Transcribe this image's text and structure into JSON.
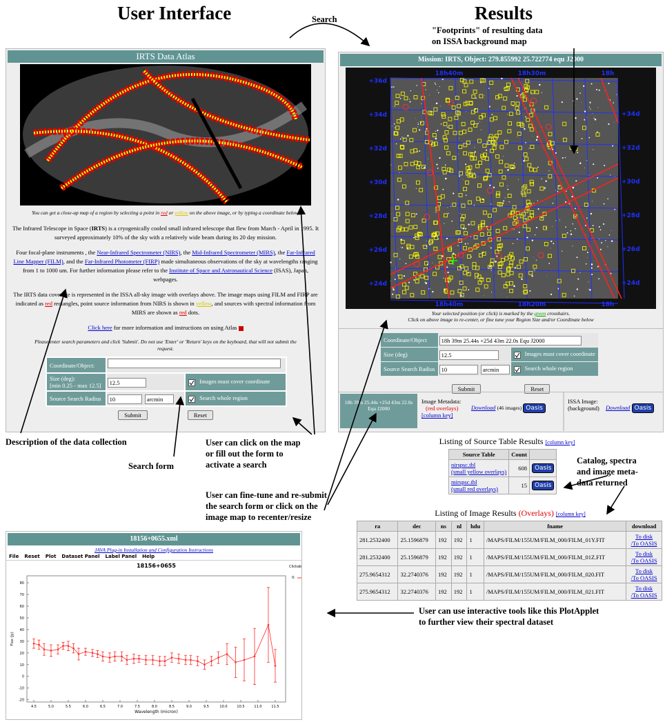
{
  "headings": {
    "left": "User Interface",
    "right": "Results",
    "search": "Search"
  },
  "annotations": {
    "footprints": [
      "\"Footprints\" of resulting data",
      "on ISSA background map"
    ],
    "description": "Description of the data collection",
    "search_form": "Search form",
    "click_map": [
      "User can click on the map",
      "or fill out the form to",
      "activate a search"
    ],
    "fine_tune": [
      "User can fine-tune and re-submit",
      "the search form or click on the",
      "image map to recenter/resize"
    ],
    "returned": [
      "Catalog, spectra",
      "and image meta-",
      "data returned"
    ],
    "plot_applet": [
      "User can use interactive tools like this PlotApplet",
      "to further view their spectral dataset"
    ]
  },
  "atlas": {
    "title": "IRTS Data Atlas",
    "caption": [
      {
        "text": "You can get a close-up map of a region by selecting a point in "
      },
      {
        "text": "red",
        "style": "red"
      },
      {
        "text": " or "
      },
      {
        "text": "yellow",
        "style": "yellow"
      },
      {
        "text": " on the above image, or by typing a coordinate below."
      }
    ],
    "paragraphs": [
      [
        {
          "text": "The Infrared Telescope in Space ("
        },
        {
          "text": "IRTS",
          "style": "bold"
        },
        {
          "text": ") is a cryogenically cooled small infrared telescope that flew from March - April in 1995. It surveyed approximately 10% of the sky with a relatively wide beam during its 20 day mission."
        }
      ],
      [
        {
          "text": "Four focal-plane instruments , the "
        },
        {
          "text": "Near-Infrared Spectrometer (NIRS)",
          "style": "link"
        },
        {
          "text": ", the "
        },
        {
          "text": "Mid-Infrared Spectrometer (MIRS)",
          "style": "link"
        },
        {
          "text": ", the "
        },
        {
          "text": "Far-Infrared Line Mapper (FILM)",
          "style": "link"
        },
        {
          "text": ", and the "
        },
        {
          "text": "Far-Infrared Photometer (FIRP)",
          "style": "link"
        },
        {
          "text": " made simultaneous observations of the sky at wavelengths ranging from 1 to 1000 um. For further information please refer to the "
        },
        {
          "text": "Institute of Space and Astronautical Science",
          "style": "link"
        },
        {
          "text": " (ISAS), Japan, webpages."
        }
      ],
      [
        {
          "text": "The IRTS data coverage is represented in the ISSA all-sky image with overlays above. The image maps using FILM and FIRP are indicated as "
        },
        {
          "text": "red",
          "style": "red"
        },
        {
          "text": " rectangles, point source information from NIRS is shown in "
        },
        {
          "text": "yellow",
          "style": "yellow"
        },
        {
          "text": ", and sources with spectral information from MIRS are shown as "
        },
        {
          "text": "red",
          "style": "red"
        },
        {
          "text": " dots."
        }
      ]
    ],
    "help": [
      {
        "text": "Click here",
        "style": "link"
      },
      {
        "text": " for more information and instructions on using Atlas"
      }
    ],
    "instructions": "Please enter search parameters and click 'Submit'. Do not use 'Enter' or 'Return' keys on the keyboard, that will not submit the request.",
    "form": {
      "coordinate": "Coordinate/Object:",
      "size": "Size (deg):",
      "size_range": "[min 0.25 - max 12.5]",
      "size_value": "12.5",
      "radius": "Source Search Radius",
      "radius_value": "10",
      "unit": "arcmin",
      "cover": "Images must cover coordinate",
      "whole": "Search whole region",
      "submit": "Submit",
      "reset": "Reset"
    }
  },
  "results": {
    "title": "Mission: IRTS, Object: 279.855992 25.722774 equ J2000",
    "map_labels": {
      "top": [
        "18h40m",
        "18h30m",
        "18h"
      ],
      "bottom": [
        "18h40m",
        "18h20m",
        "18h"
      ],
      "left": [
        "+36d",
        "+34d",
        "+32d",
        "+30d",
        "+28d",
        "+26d",
        "+24d"
      ],
      "right": [
        "+34d",
        "+32d",
        "+30d",
        "+28d",
        "+26d",
        "+24d"
      ]
    },
    "caption": [
      {
        "text": "Your selected position (or click) is marked by the "
      },
      {
        "text": "green",
        "style": "green"
      },
      {
        "text": " crosshairs."
      }
    ],
    "caption2": "Click on above image to re-center, or fine tune your Region Size and/or Coordinate below",
    "form": {
      "coordinate": "Coordinate/Object",
      "coordinate_value": "18h 39m 25.44s +25d 43m 22.0s Equ J2000",
      "size": "Size (deg)",
      "size_value": "12.5",
      "radius": "Source Search Radius",
      "radius_value": "10",
      "unit": "arcmin",
      "cover": "Images must cover coordinate",
      "whole": "Search whole region",
      "submit": "Submit",
      "reset": "Reset"
    },
    "position": "18h 39m 25.44s +25d 43m 22.0s Equ J2000",
    "image_metadata": {
      "label": "Image Metadata:",
      "overlay": "(red overlays)",
      "column_key": "[column key]",
      "download": "Download",
      "count": "(46 images)"
    },
    "issa": {
      "label": "ISSA Image:",
      "sub": "(background)",
      "download": "Download"
    },
    "oasis": "Oasis"
  },
  "source_listing": {
    "title": "Listing of Source Table Results",
    "column_key": "[column key]",
    "headers": [
      "Source Table",
      "Count"
    ],
    "rows": [
      {
        "file": "nirspsc.tbl",
        "note": "(small yellow overlays)",
        "count": "608"
      },
      {
        "file": "mirspsc.tbl",
        "note": "(small red overlays)",
        "count": "15"
      }
    ]
  },
  "image_listing": {
    "title": "Listing of Image Results",
    "overlays": "(Overlays)",
    "column_key": "[column key]",
    "headers": [
      "ra",
      "dec",
      "ns",
      "nl",
      "hdu",
      "fname",
      "download"
    ],
    "rows": [
      [
        "281.2532400",
        "25.1596879",
        "192",
        "192",
        "1",
        "/MAPS/FILM/155UM/FILM_000/FILM_01Y.FIT",
        "To disk",
        "/To OASIS"
      ],
      [
        "281.2532400",
        "25.1596879",
        "192",
        "192",
        "1",
        "/MAPS/FILM/155UM/FILM_000/FILM_01Z.FIT",
        "To disk",
        "/To OASIS"
      ],
      [
        "275.9654312",
        "32.2740376",
        "192",
        "192",
        "1",
        "/MAPS/FILM/155UM/FILM_000/FILM_020.FIT",
        "To disk",
        "/To OASIS"
      ],
      [
        "275.9654312",
        "32.2740376",
        "192",
        "192",
        "1",
        "/MAPS/FILM/155UM/FILM_000/FILM_021.FIT",
        "To disk",
        "/To OASIS"
      ]
    ]
  },
  "plot_window": {
    "title": "18156+0655.xml",
    "plugin": "JAVA Plug-in Installation and Configuration Instructions",
    "menu": [
      "File",
      "Reset",
      "Plot",
      "Dataset Panel",
      "Label Panel",
      "Help"
    ],
    "legend_title": "Clickable Legend"
  },
  "chart_data": {
    "type": "errorbar",
    "title": "18156+0655",
    "x_label": "Wavelength (micron)",
    "y_label": "Flux (Jy)",
    "x": [
      4.5,
      4.65,
      4.8,
      5.0,
      5.2,
      5.35,
      5.5,
      5.65,
      5.8,
      6.0,
      6.2,
      6.35,
      6.5,
      6.7,
      6.85,
      7.05,
      7.2,
      7.4,
      7.55,
      7.75,
      7.95,
      8.15,
      8.3,
      8.5,
      8.7,
      8.9,
      9.05,
      9.25,
      9.45,
      9.65,
      9.85,
      10.1,
      10.35,
      10.6,
      10.9,
      11.3,
      11.5
    ],
    "series": [
      {
        "name": "0:",
        "color": "#ff2a2a",
        "values": [
          28,
          27,
          23,
          22,
          23,
          26,
          26,
          24,
          19,
          21,
          20,
          19,
          17,
          16,
          17,
          17,
          14,
          15,
          15,
          14,
          14,
          13,
          13,
          16,
          15,
          14,
          14,
          13,
          10,
          13,
          16,
          19,
          12,
          14,
          17,
          44,
          9
        ],
        "errors": [
          4,
          4,
          5,
          5,
          4,
          3,
          4,
          4,
          5,
          3,
          3,
          3,
          4,
          4,
          4,
          4,
          4,
          4,
          3,
          4,
          4,
          4,
          4,
          4,
          4,
          4,
          4,
          4,
          4,
          4,
          5,
          9,
          13,
          18,
          24,
          32,
          14
        ]
      }
    ],
    "xlim": [
      4.3,
      11.8
    ],
    "ylim": [
      -22,
      86
    ],
    "xticks": [
      4.5,
      {
        "value": 5,
        "label": "5.0"
      },
      5.5,
      {
        "value": 6,
        "label": "6.0"
      },
      6.5,
      {
        "value": 7,
        "label": "7.0"
      },
      7.5,
      {
        "value": 8,
        "label": "8.0"
      },
      8.5,
      {
        "value": 9,
        "label": "9.0"
      },
      9.5,
      {
        "value": 10,
        "label": "10.0"
      },
      10.5,
      {
        "value": 11,
        "label": "11.0"
      },
      11.5
    ],
    "yticks": [
      -20,
      -10,
      0,
      10,
      20,
      30,
      40,
      50,
      60,
      70,
      80
    ]
  }
}
